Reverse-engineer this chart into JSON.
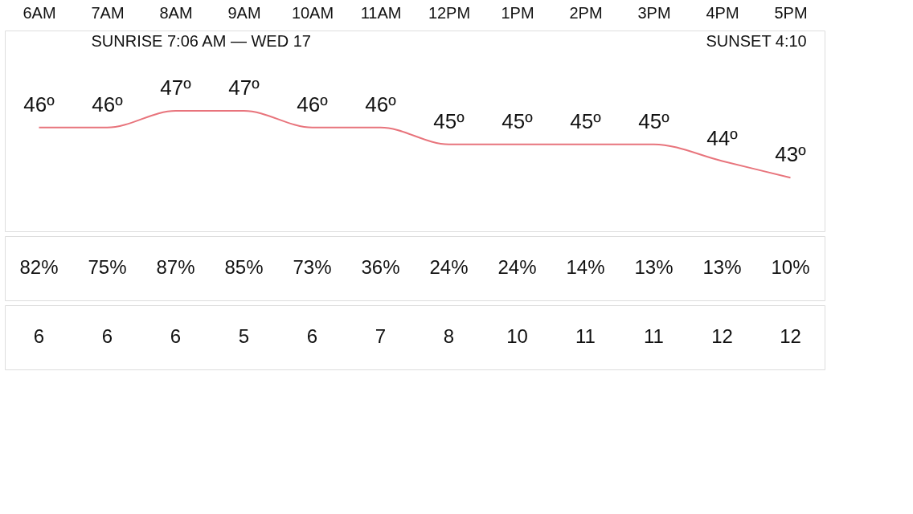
{
  "chart_data": [
    {
      "type": "line",
      "categories": [
        "6AM",
        "7AM",
        "8AM",
        "9AM",
        "10AM",
        "11AM",
        "12PM",
        "1PM",
        "2PM",
        "3PM",
        "4PM",
        "5PM"
      ],
      "series": [
        {
          "color": "#e8747c",
          "values": [
            46,
            46,
            47,
            47,
            46,
            46,
            45,
            45,
            45,
            45,
            44,
            43
          ],
          "value_labels": [
            "46º",
            "46º",
            "47º",
            "47º",
            "46º",
            "46º",
            "45º",
            "45º",
            "45º",
            "45º",
            "44º",
            "43º"
          ]
        }
      ],
      "annotations": [
        "SUNRISE 7:06 AM — WED 17",
        "SUNSET 4:10"
      ],
      "marker": "none"
    },
    {
      "type": "other",
      "values": [
        82,
        75,
        87,
        85,
        73,
        36,
        24,
        24,
        14,
        13,
        13,
        10
      ],
      "value_labels": [
        "82%",
        "75%",
        "87%",
        "85%",
        "73%",
        "36%",
        "24%",
        "24%",
        "14%",
        "13%",
        "13%",
        "10%"
      ]
    },
    {
      "type": "other",
      "values": [
        6,
        6,
        6,
        5,
        6,
        7,
        8,
        10,
        11,
        11,
        12,
        12
      ],
      "data_labels": true
    }
  ]
}
